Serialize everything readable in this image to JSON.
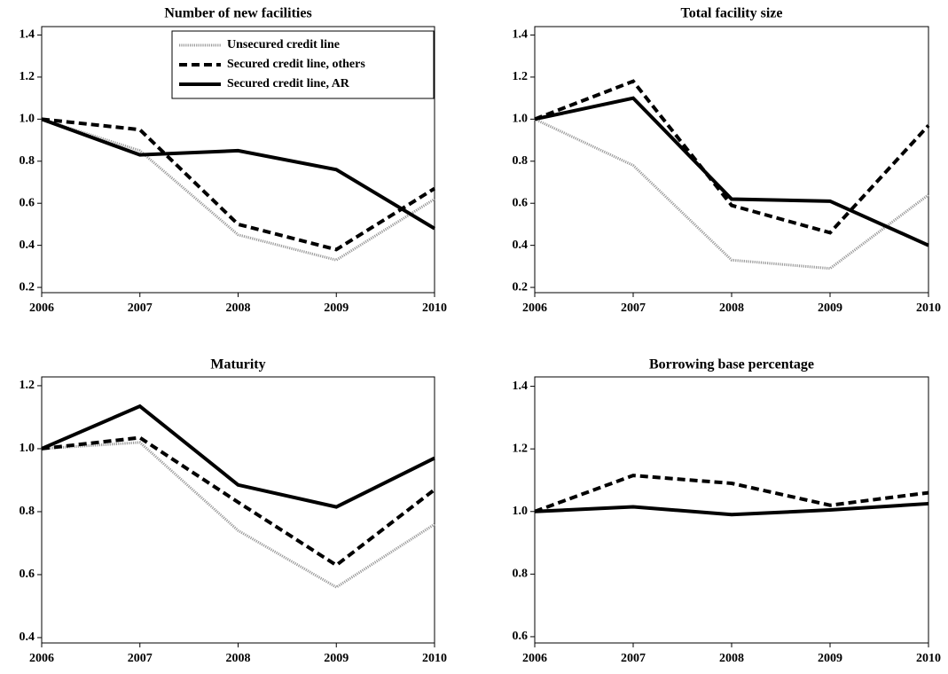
{
  "chart_data": [
    {
      "type": "line",
      "title": "Number of new facilities",
      "x": [
        2006,
        2007,
        2008,
        2009,
        2010
      ],
      "xlim": [
        2006,
        2010
      ],
      "xticks": [
        2006,
        2007,
        2008,
        2009,
        2010
      ],
      "ylim": [
        0.175,
        1.44
      ],
      "yticks": [
        0.2,
        0.4,
        0.6,
        0.8,
        {
          "value": 1,
          "label": "1.0"
        },
        1.2,
        1.4
      ],
      "legend": "upper right",
      "series": [
        {
          "name": "Unsecured credit line",
          "color": "#9a9a9a",
          "style": "dotted",
          "values": [
            1.0,
            0.85,
            0.45,
            0.33,
            0.62
          ]
        },
        {
          "name": "Secured credit line, others",
          "color": "#000000",
          "style": "dashed",
          "values": [
            1.0,
            0.95,
            0.5,
            0.38,
            0.67
          ]
        },
        {
          "name": "Secured credit line, AR",
          "color": "#000000",
          "style": "solid",
          "values": [
            1.0,
            0.83,
            0.85,
            0.76,
            0.48
          ]
        }
      ]
    },
    {
      "type": "line",
      "title": "Total facility size",
      "x": [
        2006,
        2007,
        2008,
        2009,
        2010
      ],
      "xlim": [
        2006,
        2010
      ],
      "xticks": [
        2006,
        2007,
        2008,
        2009,
        2010
      ],
      "ylim": [
        0.175,
        1.44
      ],
      "yticks": [
        0.2,
        0.4,
        0.6,
        0.8,
        {
          "value": 1,
          "label": "1.0"
        },
        1.2,
        1.4
      ],
      "series": [
        {
          "color": "#9a9a9a",
          "style": "dotted",
          "values": [
            1.0,
            0.78,
            0.33,
            0.29,
            0.64
          ]
        },
        {
          "color": "#000000",
          "style": "dashed",
          "values": [
            1.0,
            1.18,
            0.59,
            0.46,
            0.97
          ]
        },
        {
          "color": "#000000",
          "style": "solid",
          "values": [
            1.0,
            1.1,
            0.62,
            0.61,
            0.4
          ]
        }
      ]
    },
    {
      "type": "line",
      "title": "Maturity",
      "x": [
        2006,
        2007,
        2008,
        2009,
        2010
      ],
      "xlim": [
        2006,
        2010
      ],
      "xticks": [
        2006,
        2007,
        2008,
        2009,
        2010
      ],
      "ylim": [
        0.383,
        1.228
      ],
      "yticks": [
        0.4,
        0.6,
        0.8,
        {
          "value": 1,
          "label": "1.0"
        },
        1.2
      ],
      "series": [
        {
          "color": "#9a9a9a",
          "style": "dotted",
          "values": [
            1.0,
            1.02,
            0.74,
            0.56,
            0.76
          ]
        },
        {
          "color": "#000000",
          "style": "dashed",
          "values": [
            1.0,
            1.035,
            0.83,
            0.63,
            0.87
          ]
        },
        {
          "color": "#000000",
          "style": "solid",
          "values": [
            1.0,
            1.135,
            0.885,
            0.815,
            0.97
          ]
        }
      ]
    },
    {
      "type": "line",
      "title": "Borrowing base percentage",
      "x": [
        2006,
        2007,
        2008,
        2009,
        2010
      ],
      "xlim": [
        2006,
        2010
      ],
      "xticks": [
        2006,
        2007,
        2008,
        2009,
        2010
      ],
      "ylim": [
        0.58,
        1.43
      ],
      "yticks": [
        0.6,
        0.8,
        {
          "value": 1,
          "label": "1.0"
        },
        1.2,
        1.4
      ],
      "series": [
        {
          "color": "#000000",
          "style": "dashed",
          "values": [
            1.0,
            1.115,
            1.09,
            1.02,
            1.06
          ]
        },
        {
          "color": "#000000",
          "style": "solid",
          "values": [
            1.0,
            1.015,
            0.99,
            1.005,
            1.025
          ]
        }
      ]
    }
  ]
}
